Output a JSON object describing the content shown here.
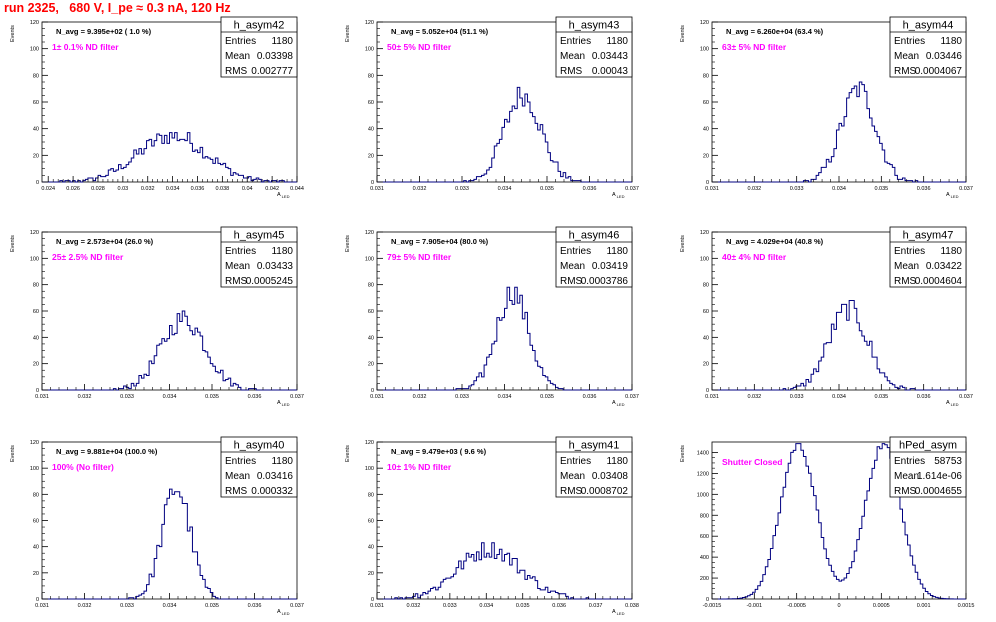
{
  "run_title": "run 2325,   680 V, I_pe ≈ 0.3 nA, 120 Hz",
  "colors": {
    "title": "#ff0000",
    "histogram": "#000080",
    "annotation": "#ff00ff",
    "axes": "#000000"
  },
  "stat_labels": {
    "entries": "Entries",
    "mean": "Mean",
    "rms": "RMS"
  },
  "y_axis_label": "Events",
  "chart_data": [
    {
      "type": "histogram",
      "name": "h_asym42",
      "navg": "N_avg = 9.395e+02 ( 1.0 %)",
      "annotation": "1± 0.1% ND filter",
      "stats": {
        "entries": "1180",
        "mean": "0.03398",
        "rms": "0.002777"
      },
      "xlabel": "A_LED",
      "xlim": [
        0.0235,
        0.044
      ],
      "ylim": [
        0,
        120
      ],
      "xticks": [
        0.024,
        0.026,
        0.028,
        0.03,
        0.032,
        0.034,
        0.036,
        0.038,
        0.04,
        0.042,
        0.044
      ],
      "xtick_labels": [
        "0.024",
        "0.026",
        "0.028",
        "0.03",
        "0.032",
        "0.034",
        "0.036",
        "0.038",
        "0.04",
        "0.042",
        "0.044"
      ],
      "yticks": [
        0,
        20,
        40,
        60,
        80,
        100,
        120
      ],
      "gen": {
        "kind": "gauss",
        "mean": 0.03398,
        "rms": 0.002777,
        "entries": 1180,
        "nbins": 100
      }
    },
    {
      "type": "histogram",
      "name": "h_asym43",
      "navg": "N_avg = 5.052e+04 (51.1 %)",
      "annotation": "50± 5% ND filter",
      "stats": {
        "entries": "1180",
        "mean": "0.03443",
        "rms": "0.00043"
      },
      "xlabel": "A_LED",
      "xlim": [
        0.031,
        0.037
      ],
      "ylim": [
        0,
        120
      ],
      "xticks": [
        0.031,
        0.032,
        0.033,
        0.034,
        0.035,
        0.036,
        0.037
      ],
      "xtick_labels": [
        "0.031",
        "0.032",
        "0.033",
        "0.034",
        "0.035",
        "0.036",
        "0.037"
      ],
      "yticks": [
        0,
        20,
        40,
        60,
        80,
        100,
        120
      ],
      "gen": {
        "kind": "gauss",
        "mean": 0.03443,
        "rms": 0.00043,
        "entries": 1180,
        "nbins": 100
      }
    },
    {
      "type": "histogram",
      "name": "h_asym44",
      "navg": "N_avg = 6.260e+04 (63.4 %)",
      "annotation": "63± 5% ND filter",
      "stats": {
        "entries": "1180",
        "mean": "0.03446",
        "rms": "0.0004067"
      },
      "xlabel": "A_LED",
      "xlim": [
        0.031,
        0.037
      ],
      "ylim": [
        0,
        120
      ],
      "xticks": [
        0.031,
        0.032,
        0.033,
        0.034,
        0.035,
        0.036,
        0.037
      ],
      "xtick_labels": [
        "0.031",
        "0.032",
        "0.033",
        "0.034",
        "0.035",
        "0.036",
        "0.037"
      ],
      "yticks": [
        0,
        20,
        40,
        60,
        80,
        100,
        120
      ],
      "gen": {
        "kind": "gauss",
        "mean": 0.03446,
        "rms": 0.0004067,
        "entries": 1180,
        "nbins": 100
      }
    },
    {
      "type": "histogram",
      "name": "h_asym45",
      "navg": "N_avg = 2.573e+04 (26.0 %)",
      "annotation": "25± 2.5% ND filter",
      "stats": {
        "entries": "1180",
        "mean": "0.03433",
        "rms": "0.0005245"
      },
      "xlabel": "A_LED",
      "xlim": [
        0.031,
        0.037
      ],
      "ylim": [
        0,
        120
      ],
      "xticks": [
        0.031,
        0.032,
        0.033,
        0.034,
        0.035,
        0.036,
        0.037
      ],
      "xtick_labels": [
        "0.031",
        "0.032",
        "0.033",
        "0.034",
        "0.035",
        "0.036",
        "0.037"
      ],
      "yticks": [
        0,
        20,
        40,
        60,
        80,
        100,
        120
      ],
      "gen": {
        "kind": "gauss",
        "mean": 0.03433,
        "rms": 0.0005245,
        "entries": 1180,
        "nbins": 100
      }
    },
    {
      "type": "histogram",
      "name": "h_asym46",
      "navg": "N_avg = 7.905e+04 (80.0 %)",
      "annotation": "79± 5% ND filter",
      "stats": {
        "entries": "1180",
        "mean": "0.03419",
        "rms": "0.0003786"
      },
      "xlabel": "A_LED",
      "xlim": [
        0.031,
        0.037
      ],
      "ylim": [
        0,
        120
      ],
      "xticks": [
        0.031,
        0.032,
        0.033,
        0.034,
        0.035,
        0.036,
        0.037
      ],
      "xtick_labels": [
        "0.031",
        "0.032",
        "0.033",
        "0.034",
        "0.035",
        "0.036",
        "0.037"
      ],
      "yticks": [
        0,
        20,
        40,
        60,
        80,
        100,
        120
      ],
      "gen": {
        "kind": "gauss",
        "mean": 0.03419,
        "rms": 0.0003786,
        "entries": 1180,
        "nbins": 100
      }
    },
    {
      "type": "histogram",
      "name": "h_asym47",
      "navg": "N_avg = 4.029e+04 (40.8 %)",
      "annotation": "40± 4% ND filter",
      "stats": {
        "entries": "1180",
        "mean": "0.03422",
        "rms": "0.0004604"
      },
      "xlabel": "A_LED",
      "xlim": [
        0.031,
        0.037
      ],
      "ylim": [
        0,
        120
      ],
      "xticks": [
        0.031,
        0.032,
        0.033,
        0.034,
        0.035,
        0.036,
        0.037
      ],
      "xtick_labels": [
        "0.031",
        "0.032",
        "0.033",
        "0.034",
        "0.035",
        "0.036",
        "0.037"
      ],
      "yticks": [
        0,
        20,
        40,
        60,
        80,
        100,
        120
      ],
      "gen": {
        "kind": "gauss",
        "mean": 0.03422,
        "rms": 0.0004604,
        "entries": 1180,
        "nbins": 100
      }
    },
    {
      "type": "histogram",
      "name": "h_asym40",
      "navg": "N_avg = 9.881e+04 (100.0 %)",
      "annotation": "100% (No filter)",
      "stats": {
        "entries": "1180",
        "mean": "0.03416",
        "rms": "0.000332"
      },
      "xlabel": "A_LED",
      "xlim": [
        0.031,
        0.037
      ],
      "ylim": [
        0,
        120
      ],
      "xticks": [
        0.031,
        0.032,
        0.033,
        0.034,
        0.035,
        0.036,
        0.037
      ],
      "xtick_labels": [
        "0.031",
        "0.032",
        "0.033",
        "0.034",
        "0.035",
        "0.036",
        "0.037"
      ],
      "yticks": [
        0,
        20,
        40,
        60,
        80,
        100,
        120
      ],
      "gen": {
        "kind": "gauss",
        "mean": 0.03416,
        "rms": 0.000332,
        "entries": 1180,
        "nbins": 100
      }
    },
    {
      "type": "histogram",
      "name": "h_asym41",
      "navg": "N_avg = 9.479e+03 ( 9.6 %)",
      "annotation": "10± 1% ND filter",
      "stats": {
        "entries": "1180",
        "mean": "0.03408",
        "rms": "0.0008702"
      },
      "xlabel": "A_LED",
      "xlim": [
        0.031,
        0.038
      ],
      "ylim": [
        0,
        120
      ],
      "xticks": [
        0.031,
        0.032,
        0.033,
        0.034,
        0.035,
        0.036,
        0.037,
        0.038
      ],
      "xtick_labels": [
        "0.031",
        "0.032",
        "0.033",
        "0.034",
        "0.035",
        "0.036",
        "0.037",
        "0.038"
      ],
      "yticks": [
        0,
        20,
        40,
        60,
        80,
        100,
        120
      ],
      "gen": {
        "kind": "gauss",
        "mean": 0.03408,
        "rms": 0.0008702,
        "entries": 1180,
        "nbins": 100
      }
    },
    {
      "type": "histogram",
      "name": "hPed_asym",
      "navg": "",
      "annotation": "Shutter Closed",
      "stats": {
        "entries": "58753",
        "mean": "1.614e-06",
        "rms": "0.0004655"
      },
      "xlabel": "",
      "xlim": [
        -0.0015,
        0.0015
      ],
      "ylim": [
        0,
        1500
      ],
      "xticks": [
        -0.0015,
        -0.001,
        -0.0005,
        0,
        0.0005,
        0.001,
        0.0015
      ],
      "xtick_labels": [
        "-0.0015",
        "-0.001",
        "-0.0005",
        "0",
        "0.0005",
        "0.001",
        "0.0015"
      ],
      "yticks": [
        0,
        200,
        400,
        600,
        800,
        1000,
        1200,
        1400
      ],
      "gen": {
        "kind": "bimodal",
        "centers": [
          -0.00048,
          0.00052
        ],
        "sigma": 0.00021,
        "peak": 1480,
        "min_val": 790,
        "nbins": 100
      }
    }
  ]
}
